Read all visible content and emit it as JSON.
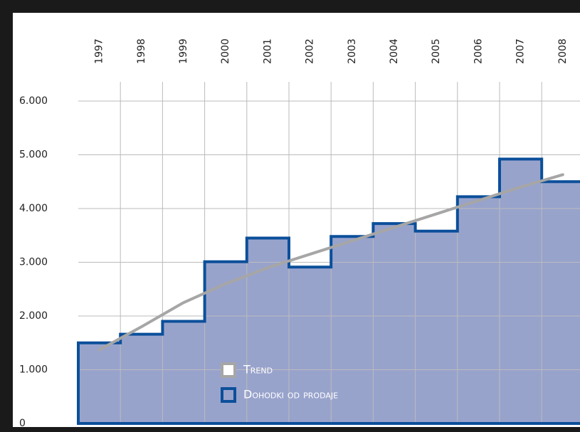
{
  "chart_data": {
    "type": "step",
    "categories": [
      "1997",
      "1998",
      "1999",
      "2000",
      "2001",
      "2002",
      "2003",
      "2004",
      "2005",
      "2006",
      "2007",
      "2008"
    ],
    "series": [
      {
        "name": "Trend",
        "color": "#a6a6a6",
        "values": [
          1370,
          1800,
          2250,
          2600,
          2900,
          3150,
          3400,
          3650,
          3900,
          4150,
          4400,
          4630
        ]
      },
      {
        "name": "Dohodki od prodaje",
        "color": "#0b4f9a",
        "fill": "#98a3cc",
        "values": [
          1500,
          1660,
          1900,
          3010,
          3450,
          2910,
          3480,
          3720,
          3580,
          4220,
          4920,
          4500
        ]
      }
    ],
    "ylim": [
      0,
      6000
    ],
    "yticks": [
      0,
      {
        "value": 1000,
        "label": "1.000"
      },
      {
        "value": 2000,
        "label": "2.000"
      },
      {
        "value": 3000,
        "label": "3.000"
      },
      {
        "value": 4000,
        "label": "4.000"
      },
      {
        "value": 5000,
        "label": "5.000"
      },
      {
        "value": 6000,
        "label": "6.000"
      }
    ],
    "grid": true
  }
}
